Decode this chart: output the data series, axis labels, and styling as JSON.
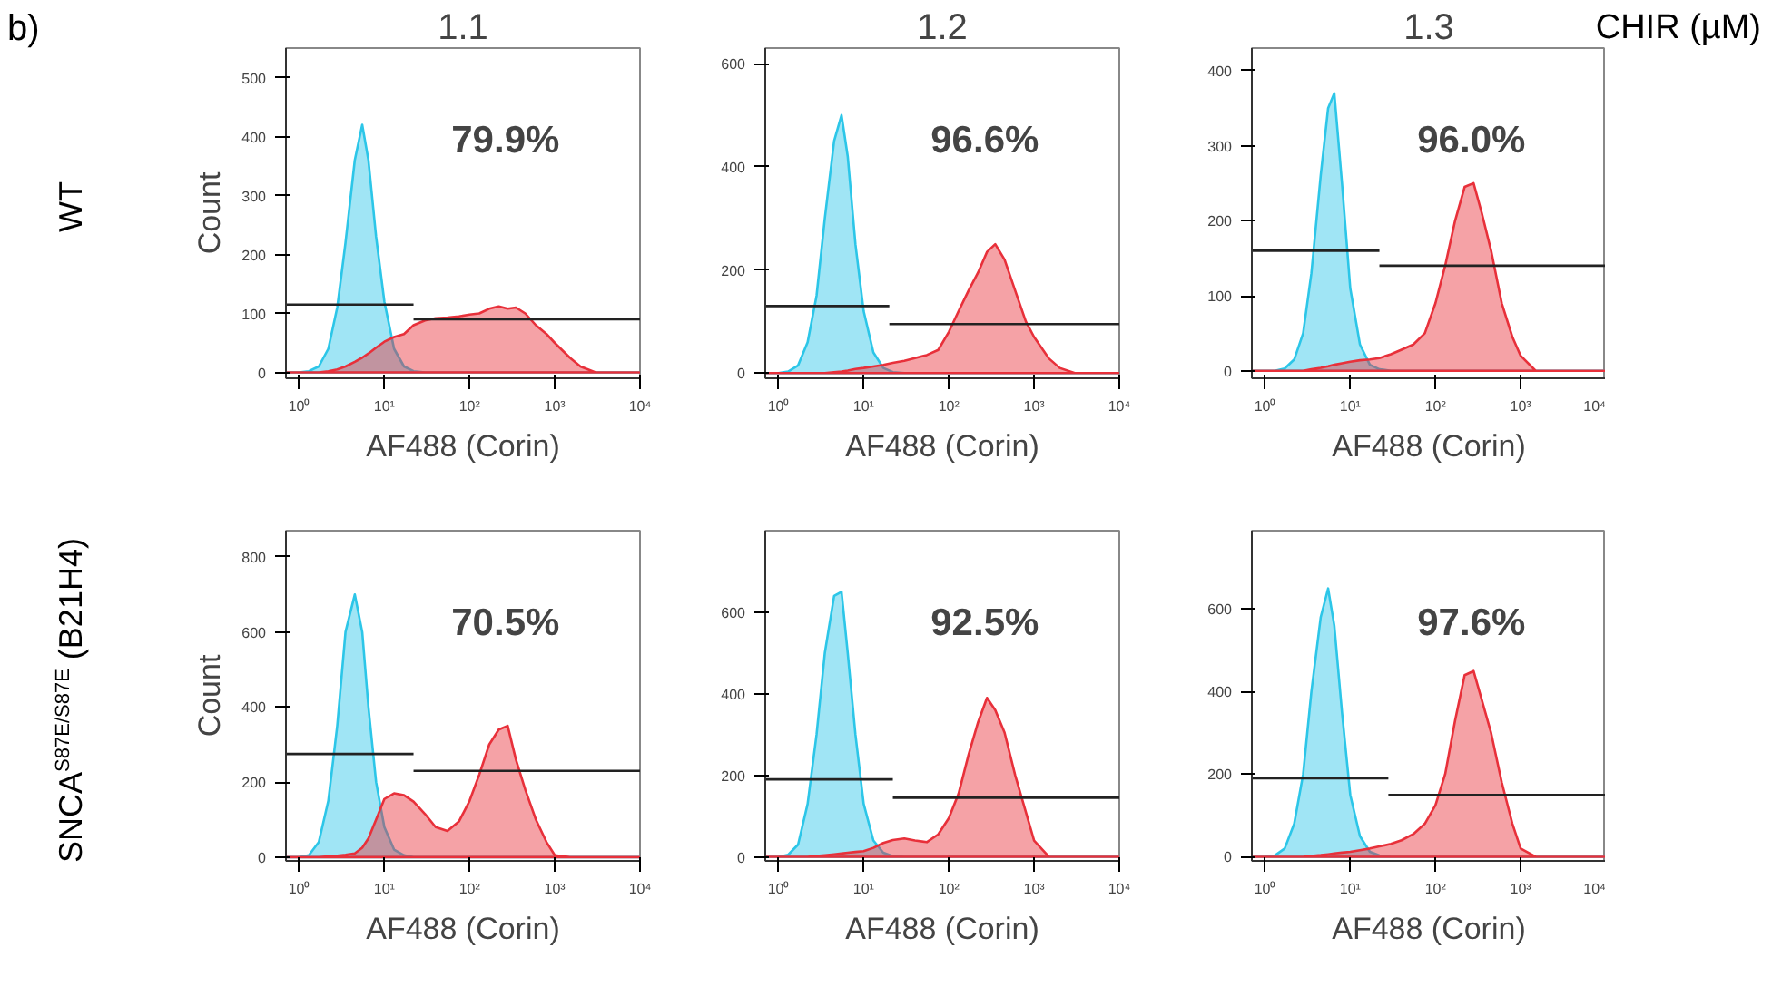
{
  "chart_data": [
    {
      "type": "area",
      "title": "1.1",
      "subtitle": "b)",
      "xlabel": "AF488 (Corin)",
      "ylabel": "Count",
      "log": "x",
      "xlim": [
        0.7,
        10000
      ],
      "ylim": [
        -10,
        550
      ],
      "xticks": [
        {
          "value": 1,
          "label": "10⁰"
        },
        {
          "value": 10,
          "label": "10¹"
        },
        {
          "value": 100,
          "label": "10²"
        },
        {
          "value": 1000,
          "label": "10³"
        },
        {
          "value": 10000,
          "label": "10⁴"
        }
      ],
      "yticks": [
        0,
        100,
        200,
        300,
        400,
        500
      ],
      "x": [
        0.7,
        1,
        1.3,
        1.7,
        2.2,
        2.8,
        3.5,
        4.5,
        5.5,
        6.5,
        8,
        10,
        13,
        17,
        22,
        30,
        40,
        55,
        75,
        100,
        130,
        170,
        220,
        280,
        350,
        450,
        600,
        800,
        1000,
        1500,
        2000,
        3000,
        5000,
        10000
      ],
      "series": [
        {
          "color": "#2cc6e8",
          "values": [
            0,
            0,
            2,
            10,
            40,
            110,
            220,
            360,
            420,
            360,
            230,
            120,
            40,
            10,
            2,
            0,
            0,
            0,
            0,
            0,
            0,
            0,
            0,
            0,
            0,
            0,
            0,
            0,
            0,
            0,
            0,
            0,
            0,
            0
          ]
        },
        {
          "color": "#e8303a",
          "values": [
            0,
            0,
            0,
            0,
            2,
            5,
            10,
            18,
            25,
            32,
            42,
            52,
            60,
            65,
            80,
            88,
            92,
            93,
            95,
            98,
            100,
            108,
            112,
            108,
            110,
            100,
            80,
            65,
            50,
            25,
            10,
            0,
            0,
            0
          ]
        },
        {
          "type": "line",
          "color": "#222222",
          "x": [
            0.7,
            22
          ],
          "values": [
            115,
            115
          ]
        },
        {
          "type": "line",
          "color": "#222222",
          "x": [
            22,
            10000
          ],
          "values": [
            90,
            90
          ]
        }
      ],
      "annotations": [
        "79.9%",
        "WT"
      ]
    },
    {
      "type": "area",
      "title": "1.2",
      "xlabel": "AF488 (Corin)",
      "log": "x",
      "xlim": [
        0.7,
        10000
      ],
      "ylim": [
        -10,
        630
      ],
      "xticks": [
        {
          "value": 1,
          "label": "10⁰"
        },
        {
          "value": 10,
          "label": "10¹"
        },
        {
          "value": 100,
          "label": "10²"
        },
        {
          "value": 1000,
          "label": "10³"
        },
        {
          "value": 10000,
          "label": "10⁴"
        }
      ],
      "yticks": [
        0,
        200,
        400,
        600
      ],
      "x": [
        0.7,
        1,
        1.3,
        1.7,
        2.2,
        2.8,
        3.5,
        4.5,
        5.5,
        6.5,
        8,
        10,
        13,
        17,
        22,
        30,
        40,
        55,
        75,
        100,
        130,
        170,
        220,
        280,
        350,
        450,
        600,
        800,
        1000,
        1500,
        2000,
        3000,
        5000,
        10000
      ],
      "series": [
        {
          "color": "#2cc6e8",
          "values": [
            0,
            0,
            3,
            15,
            60,
            150,
            300,
            450,
            500,
            420,
            250,
            120,
            40,
            10,
            2,
            0,
            0,
            0,
            0,
            0,
            0,
            0,
            0,
            0,
            0,
            0,
            0,
            0,
            0,
            0,
            0,
            0,
            0,
            0
          ]
        },
        {
          "color": "#e8303a",
          "values": [
            0,
            0,
            0,
            0,
            0,
            0,
            0,
            2,
            3,
            5,
            8,
            10,
            13,
            16,
            20,
            24,
            29,
            35,
            45,
            80,
            120,
            160,
            195,
            235,
            250,
            220,
            160,
            100,
            70,
            28,
            10,
            0,
            0,
            0
          ]
        },
        {
          "type": "line",
          "color": "#222222",
          "x": [
            0.7,
            20
          ],
          "values": [
            130,
            130
          ]
        },
        {
          "type": "line",
          "color": "#222222",
          "x": [
            20,
            10000
          ],
          "values": [
            95,
            95
          ]
        }
      ],
      "annotations": [
        "96.6%"
      ]
    },
    {
      "type": "area",
      "title": "1.3",
      "subtitle": "CHIR (µM)",
      "xlabel": "AF488 (Corin)",
      "log": "x",
      "xlim": [
        0.7,
        10000
      ],
      "ylim": [
        -10,
        430
      ],
      "xticks": [
        {
          "value": 1,
          "label": "10⁰"
        },
        {
          "value": 10,
          "label": "10¹"
        },
        {
          "value": 100,
          "label": "10²"
        },
        {
          "value": 1000,
          "label": "10³"
        },
        {
          "value": 10000,
          "label": "10⁴"
        }
      ],
      "yticks": [
        0,
        100,
        200,
        300,
        400
      ],
      "x": [
        0.7,
        1,
        1.3,
        1.7,
        2.2,
        2.8,
        3.5,
        4.5,
        5.5,
        6.5,
        8,
        10,
        13,
        17,
        22,
        30,
        40,
        55,
        75,
        100,
        130,
        170,
        220,
        280,
        350,
        450,
        600,
        800,
        1000,
        1500,
        2000,
        3000,
        5000,
        10000
      ],
      "series": [
        {
          "color": "#2cc6e8",
          "values": [
            0,
            0,
            0,
            3,
            15,
            50,
            130,
            260,
            350,
            370,
            250,
            110,
            35,
            8,
            2,
            0,
            0,
            0,
            0,
            0,
            0,
            0,
            0,
            0,
            0,
            0,
            0,
            0,
            0,
            0,
            0,
            0,
            0,
            0
          ]
        },
        {
          "color": "#e8303a",
          "values": [
            0,
            0,
            0,
            0,
            0,
            0,
            2,
            4,
            6,
            8,
            10,
            12,
            14,
            15,
            17,
            22,
            28,
            35,
            50,
            90,
            140,
            200,
            245,
            250,
            210,
            160,
            90,
            45,
            20,
            0,
            0,
            0,
            0,
            0
          ]
        },
        {
          "type": "line",
          "color": "#222222",
          "x": [
            0.7,
            22
          ],
          "values": [
            160,
            160
          ]
        },
        {
          "type": "line",
          "color": "#222222",
          "x": [
            22,
            10000
          ],
          "values": [
            140,
            140
          ]
        }
      ],
      "annotations": [
        "96.0%"
      ]
    },
    {
      "type": "area",
      "xlabel": "AF488 (Corin)",
      "ylabel": "Count",
      "log": "x",
      "xlim": [
        0.7,
        10000
      ],
      "ylim": [
        -10,
        870
      ],
      "xticks": [
        {
          "value": 1,
          "label": "10⁰"
        },
        {
          "value": 10,
          "label": "10¹"
        },
        {
          "value": 100,
          "label": "10²"
        },
        {
          "value": 1000,
          "label": "10³"
        },
        {
          "value": 10000,
          "label": "10⁴"
        }
      ],
      "yticks": [
        0,
        200,
        400,
        600,
        800
      ],
      "x": [
        0.7,
        1,
        1.3,
        1.7,
        2.2,
        2.8,
        3.5,
        4.5,
        5.5,
        6.5,
        8,
        10,
        13,
        17,
        22,
        30,
        40,
        55,
        75,
        100,
        130,
        170,
        220,
        280,
        350,
        450,
        600,
        800,
        1000,
        1500,
        2000,
        3000,
        5000,
        10000
      ],
      "series": [
        {
          "color": "#2cc6e8",
          "values": [
            0,
            0,
            5,
            40,
            150,
            350,
            600,
            700,
            600,
            400,
            200,
            80,
            20,
            5,
            0,
            0,
            0,
            0,
            0,
            0,
            0,
            0,
            0,
            0,
            0,
            0,
            0,
            0,
            0,
            0,
            0,
            0,
            0,
            0
          ]
        },
        {
          "color": "#e8303a",
          "values": [
            0,
            0,
            0,
            0,
            2,
            4,
            6,
            10,
            25,
            50,
            100,
            155,
            170,
            165,
            148,
            115,
            80,
            70,
            95,
            150,
            220,
            300,
            340,
            350,
            260,
            180,
            100,
            40,
            5,
            0,
            0,
            0,
            0,
            0
          ]
        },
        {
          "type": "line",
          "color": "#222222",
          "x": [
            0.7,
            22
          ],
          "values": [
            275,
            275
          ]
        },
        {
          "type": "line",
          "color": "#222222",
          "x": [
            22,
            10000
          ],
          "values": [
            230,
            230
          ]
        }
      ],
      "annotations": [
        "70.5%",
        "SNCA$^{S87E/S87E}$ (B21H4)"
      ]
    },
    {
      "type": "area",
      "xlabel": "AF488 (Corin)",
      "log": "x",
      "xlim": [
        0.7,
        10000
      ],
      "ylim": [
        -10,
        800
      ],
      "xticks": [
        {
          "value": 1,
          "label": "10⁰"
        },
        {
          "value": 10,
          "label": "10¹"
        },
        {
          "value": 100,
          "label": "10²"
        },
        {
          "value": 1000,
          "label": "10³"
        },
        {
          "value": 10000,
          "label": "10⁴"
        }
      ],
      "yticks": [
        0,
        200,
        400,
        600
      ],
      "x": [
        0.7,
        1,
        1.3,
        1.7,
        2.2,
        2.8,
        3.5,
        4.5,
        5.5,
        6.5,
        8,
        10,
        13,
        17,
        22,
        30,
        40,
        55,
        75,
        100,
        130,
        170,
        220,
        280,
        350,
        450,
        600,
        800,
        1000,
        1500,
        2000,
        3000,
        5000,
        10000
      ],
      "series": [
        {
          "color": "#2cc6e8",
          "values": [
            0,
            0,
            5,
            30,
            130,
            300,
            500,
            640,
            650,
            500,
            300,
            130,
            40,
            10,
            2,
            0,
            0,
            0,
            0,
            0,
            0,
            0,
            0,
            0,
            0,
            0,
            0,
            0,
            0,
            0,
            0,
            0,
            0,
            0
          ]
        },
        {
          "color": "#e8303a",
          "values": [
            0,
            0,
            0,
            0,
            0,
            2,
            4,
            6,
            8,
            10,
            12,
            14,
            22,
            34,
            41,
            45,
            40,
            36,
            55,
            95,
            155,
            250,
            330,
            390,
            360,
            305,
            200,
            110,
            40,
            0,
            0,
            0,
            0,
            0
          ]
        },
        {
          "type": "line",
          "color": "#222222",
          "x": [
            0.7,
            22
          ],
          "values": [
            190,
            190
          ]
        },
        {
          "type": "line",
          "color": "#222222",
          "x": [
            22,
            10000
          ],
          "values": [
            145,
            145
          ]
        }
      ],
      "annotations": [
        "92.5%"
      ]
    },
    {
      "type": "area",
      "xlabel": "AF488 (Corin)",
      "log": "x",
      "xlim": [
        0.7,
        10000
      ],
      "ylim": [
        -10,
        790
      ],
      "xticks": [
        {
          "value": 1,
          "label": "10⁰"
        },
        {
          "value": 10,
          "label": "10¹"
        },
        {
          "value": 100,
          "label": "10²"
        },
        {
          "value": 1000,
          "label": "10³"
        },
        {
          "value": 10000,
          "label": "10⁴"
        }
      ],
      "yticks": [
        0,
        200,
        400,
        600
      ],
      "x": [
        0.7,
        1,
        1.3,
        1.7,
        2.2,
        2.8,
        3.5,
        4.5,
        5.5,
        6.5,
        8,
        10,
        13,
        17,
        22,
        30,
        40,
        55,
        75,
        100,
        130,
        170,
        220,
        280,
        350,
        450,
        600,
        800,
        1000,
        1500,
        2000,
        3000,
        5000,
        10000
      ],
      "series": [
        {
          "color": "#2cc6e8",
          "values": [
            0,
            0,
            3,
            20,
            80,
            200,
            400,
            580,
            650,
            560,
            350,
            150,
            50,
            12,
            3,
            0,
            0,
            0,
            0,
            0,
            0,
            0,
            0,
            0,
            0,
            0,
            0,
            0,
            0,
            0,
            0,
            0,
            0,
            0
          ]
        },
        {
          "color": "#e8303a",
          "values": [
            0,
            0,
            0,
            0,
            0,
            0,
            2,
            4,
            6,
            8,
            10,
            12,
            16,
            20,
            25,
            31,
            40,
            55,
            80,
            125,
            200,
            330,
            440,
            450,
            380,
            300,
            180,
            80,
            20,
            0,
            0,
            0,
            0,
            0
          ]
        },
        {
          "type": "line",
          "color": "#222222",
          "x": [
            0.7,
            28
          ],
          "values": [
            190,
            190
          ]
        },
        {
          "type": "line",
          "color": "#222222",
          "x": [
            28,
            10000
          ],
          "values": [
            150,
            150
          ]
        }
      ],
      "annotations": [
        "97.6%"
      ]
    }
  ]
}
